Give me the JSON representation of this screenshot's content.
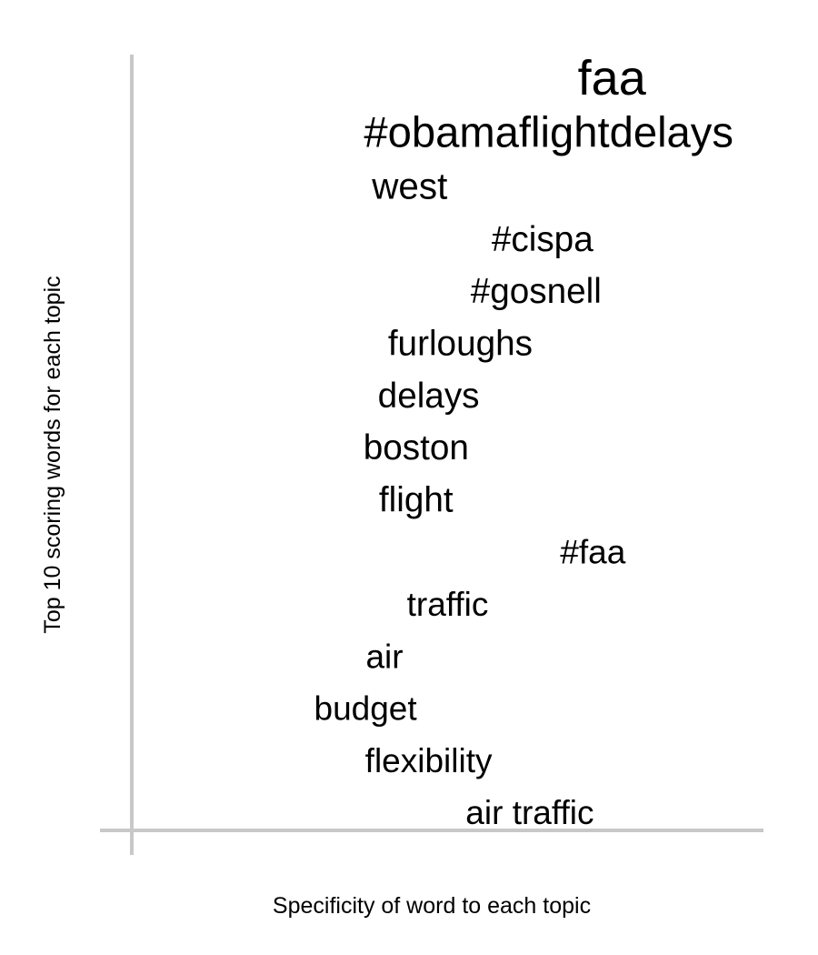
{
  "chart_data": {
    "type": "scatter",
    "title": "",
    "xlabel": "Specificity of word to each topic",
    "ylabel": "Top 10 scoring words for each topic",
    "grid": false,
    "points": [
      {
        "label": "faa",
        "x": 0.76,
        "y": 14,
        "weight": 1.0
      },
      {
        "label": "#obamaflightdelays",
        "x": 0.66,
        "y": 13,
        "weight": 0.8
      },
      {
        "label": "west",
        "x": 0.44,
        "y": 12,
        "weight": 0.6
      },
      {
        "label": "#cispa",
        "x": 0.65,
        "y": 11,
        "weight": 0.55
      },
      {
        "label": "#gosnell",
        "x": 0.64,
        "y": 10,
        "weight": 0.55
      },
      {
        "label": "furloughs",
        "x": 0.52,
        "y": 9,
        "weight": 0.55
      },
      {
        "label": "delays",
        "x": 0.47,
        "y": 8,
        "weight": 0.55
      },
      {
        "label": "boston",
        "x": 0.45,
        "y": 7,
        "weight": 0.55
      },
      {
        "label": "flight",
        "x": 0.45,
        "y": 6,
        "weight": 0.55
      },
      {
        "label": "#faa",
        "x": 0.73,
        "y": 5,
        "weight": 0.5
      },
      {
        "label": "traffic",
        "x": 0.5,
        "y": 4,
        "weight": 0.5
      },
      {
        "label": "air",
        "x": 0.4,
        "y": 3,
        "weight": 0.5
      },
      {
        "label": "budget",
        "x": 0.37,
        "y": 2,
        "weight": 0.5
      },
      {
        "label": "flexibility",
        "x": 0.47,
        "y": 1,
        "weight": 0.5
      },
      {
        "label": "air traffic",
        "x": 0.63,
        "y": 0,
        "weight": 0.5
      }
    ],
    "colors": {
      "axis": "#c8c8c8",
      "text": "#000000"
    }
  }
}
